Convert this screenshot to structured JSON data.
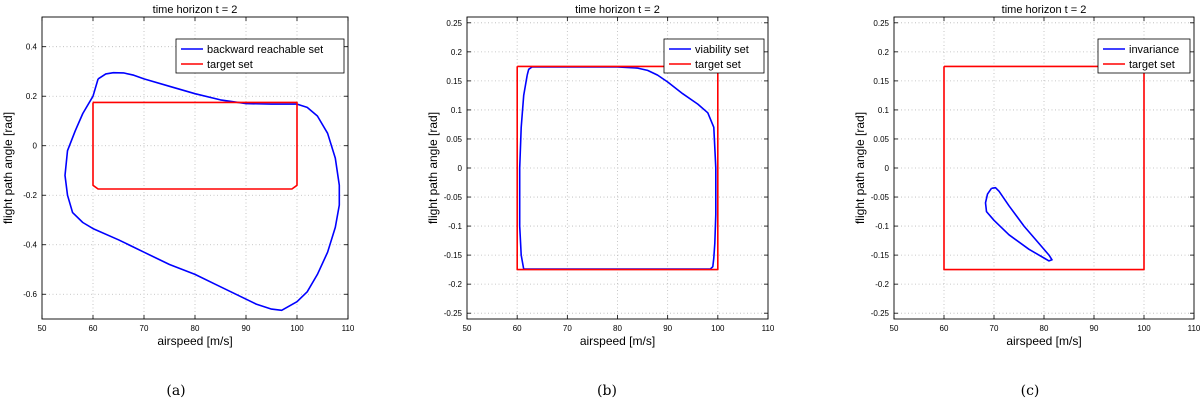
{
  "chart_data": [
    {
      "type": "line",
      "title": "time horizon t = 2",
      "xlabel": "airspeed [m/s]",
      "ylabel": "flight path angle [rad]",
      "caption": "(a)",
      "xlim": [
        50,
        110
      ],
      "ylim": [
        -0.7,
        0.52
      ],
      "xticks": [
        "50",
        "60",
        "70",
        "80",
        "90",
        "100",
        "110"
      ],
      "xtick_values": [
        50,
        60,
        70,
        80,
        90,
        100,
        110
      ],
      "yticks": [
        "-0.6",
        "-0.4",
        "-0.2",
        "0",
        "0.2",
        "0.4"
      ],
      "ytick_values": [
        -0.6,
        -0.4,
        -0.2,
        0,
        0.2,
        0.4
      ],
      "grid": true,
      "legend_position": "top-right",
      "series": [
        {
          "name": "backward reachable set",
          "color": "#0000ff",
          "x": [
            61,
            62.5,
            64,
            66,
            68,
            70,
            75,
            80,
            85,
            90,
            95,
            100,
            102,
            104,
            106,
            107.5,
            108.3,
            108.3,
            107.5,
            106,
            104,
            102,
            100,
            97,
            95,
            92,
            88,
            84,
            80,
            75,
            70,
            65,
            60,
            58,
            56,
            55,
            54.5,
            55,
            56.5,
            58,
            60,
            61
          ],
          "y": [
            0.27,
            0.29,
            0.295,
            0.294,
            0.285,
            0.27,
            0.24,
            0.21,
            0.185,
            0.17,
            0.168,
            0.168,
            0.155,
            0.12,
            0.05,
            -0.05,
            -0.16,
            -0.24,
            -0.33,
            -0.43,
            -0.52,
            -0.59,
            -0.63,
            -0.665,
            -0.66,
            -0.64,
            -0.6,
            -0.56,
            -0.52,
            -0.48,
            -0.43,
            -0.38,
            -0.335,
            -0.31,
            -0.27,
            -0.2,
            -0.12,
            -0.02,
            0.06,
            0.13,
            0.2,
            0.27
          ]
        },
        {
          "name": "target set",
          "color": "#ff0000",
          "x": [
            60,
            100,
            100,
            99,
            61,
            60,
            60
          ],
          "y": [
            0.175,
            0.175,
            -0.16,
            -0.175,
            -0.175,
            -0.16,
            0.175
          ]
        }
      ]
    },
    {
      "type": "line",
      "title": "time horizon t = 2",
      "xlabel": "airspeed [m/s]",
      "ylabel": "flight path angle [rad]",
      "caption": "(b)",
      "xlim": [
        50,
        110
      ],
      "ylim": [
        -0.26,
        0.26
      ],
      "xticks": [
        "50",
        "60",
        "70",
        "80",
        "90",
        "100",
        "110"
      ],
      "xtick_values": [
        50,
        60,
        70,
        80,
        90,
        100,
        110
      ],
      "yticks": [
        "-0.25",
        "-0.2",
        "-0.15",
        "-0.1",
        "-0.05",
        "0",
        "0.05",
        "0.1",
        "0.15",
        "0.2",
        "0.25"
      ],
      "ytick_values": [
        -0.25,
        -0.2,
        -0.15,
        -0.1,
        -0.05,
        0,
        0.05,
        0.1,
        0.15,
        0.2,
        0.25
      ],
      "grid": true,
      "legend_position": "top-right",
      "series": [
        {
          "name": "viability set",
          "color": "#0000ff",
          "x": [
            62,
            62.3,
            63,
            65,
            70,
            80,
            84,
            86,
            88,
            90,
            93,
            96,
            98,
            99.2,
            99.6,
            99.6,
            99.4,
            99.2,
            99,
            98.5,
            61.3,
            60.8,
            60.5,
            60.5,
            60.8,
            61.3,
            62
          ],
          "y": [
            0.16,
            0.17,
            0.174,
            0.174,
            0.174,
            0.174,
            0.172,
            0.168,
            0.16,
            0.148,
            0.128,
            0.11,
            0.095,
            0.07,
            0.0,
            -0.08,
            -0.13,
            -0.155,
            -0.17,
            -0.174,
            -0.174,
            -0.15,
            -0.1,
            0.0,
            0.07,
            0.125,
            0.16
          ]
        },
        {
          "name": "target set",
          "color": "#ff0000",
          "x": [
            60,
            100,
            100,
            60,
            60
          ],
          "y": [
            0.175,
            0.175,
            -0.175,
            -0.175,
            0.175
          ]
        }
      ]
    },
    {
      "type": "line",
      "title": "time horizon t = 2",
      "xlabel": "airspeed [m/s]",
      "ylabel": "flight path angle [rad]",
      "caption": "(c)",
      "xlim": [
        50,
        110
      ],
      "ylim": [
        -0.26,
        0.26
      ],
      "xticks": [
        "50",
        "60",
        "70",
        "80",
        "90",
        "100",
        "110"
      ],
      "xtick_values": [
        50,
        60,
        70,
        80,
        90,
        100,
        110
      ],
      "yticks": [
        "-0.25",
        "-0.2",
        "-0.15",
        "-0.1",
        "-0.05",
        "0",
        "0.05",
        "0.1",
        "0.15",
        "0.2",
        "0.25"
      ],
      "ytick_values": [
        -0.25,
        -0.2,
        -0.15,
        -0.1,
        -0.05,
        0,
        0.05,
        0.1,
        0.15,
        0.2,
        0.25
      ],
      "grid": true,
      "legend_position": "top-right",
      "series": [
        {
          "name": "invariance",
          "color": "#0000ff",
          "x": [
            69.5,
            70.3,
            71,
            73,
            76,
            79,
            81,
            81.6,
            81,
            80,
            77,
            73,
            70,
            68.5,
            68.3,
            68.7,
            69.5
          ],
          "y": [
            -0.035,
            -0.034,
            -0.04,
            -0.065,
            -0.1,
            -0.13,
            -0.15,
            -0.158,
            -0.16,
            -0.155,
            -0.14,
            -0.115,
            -0.09,
            -0.075,
            -0.06,
            -0.045,
            -0.035
          ]
        },
        {
          "name": "target set",
          "color": "#ff0000",
          "x": [
            60,
            100,
            100,
            60,
            60
          ],
          "y": [
            0.175,
            0.175,
            -0.175,
            -0.175,
            0.175
          ]
        }
      ]
    }
  ]
}
